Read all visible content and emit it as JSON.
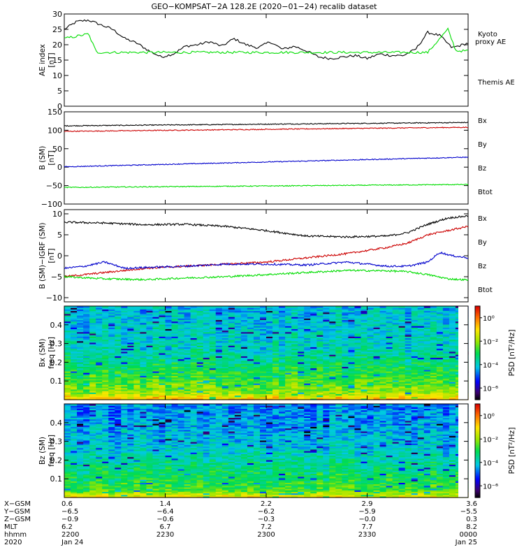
{
  "title": "GEO−KOMPSAT−2A 128.2E (2020−01−24) recalib dataset",
  "colors": {
    "black": "#000000",
    "red": "#cc0000",
    "green": "#00dd00",
    "blue": "#0000cc"
  },
  "chart_data": [
    {
      "type": "line",
      "panel": "ae",
      "ylabel": "AE index",
      "yunit": "[nT]",
      "ylim": [
        0,
        30
      ],
      "yticks": [
        0,
        5,
        10,
        15,
        20,
        25,
        30
      ],
      "legend": [
        {
          "text": "Kyoto",
          "color": "green"
        },
        {
          "text": "proxy AE",
          "color": "green"
        },
        {
          "text": "Themis AE",
          "color": "black"
        }
      ],
      "series": [
        {
          "name": "Themis AE",
          "color": "black",
          "x": [
            0,
            0.03,
            0.06,
            0.09,
            0.12,
            0.15,
            0.18,
            0.21,
            0.24,
            0.27,
            0.3,
            0.33,
            0.36,
            0.39,
            0.42,
            0.45,
            0.48,
            0.51,
            0.54,
            0.57,
            0.6,
            0.63,
            0.66,
            0.69,
            0.72,
            0.75,
            0.78,
            0.81,
            0.84,
            0.87,
            0.9,
            0.93,
            0.96,
            1.0
          ],
          "y": [
            25,
            27.5,
            28,
            26.5,
            25,
            22,
            20.5,
            18,
            16,
            17,
            19.5,
            20,
            21,
            19.5,
            22,
            20,
            19,
            21,
            18.5,
            19.5,
            18,
            16,
            15.5,
            16,
            16.5,
            15.5,
            17,
            16.5,
            16.5,
            18.5,
            24,
            23,
            19,
            20.5
          ]
        },
        {
          "name": "Kyoto proxy AE",
          "color": "green",
          "x": [
            0,
            0.04,
            0.06,
            0.08,
            0.5,
            0.9,
            0.95,
            0.97,
            1.0
          ],
          "y": [
            22,
            23,
            23.5,
            17.5,
            17.5,
            17.5,
            25,
            18,
            18
          ]
        }
      ]
    },
    {
      "type": "line",
      "panel": "b",
      "ylabel": "B (SM)",
      "yunit": "[nT]",
      "ylim": [
        -100,
        150
      ],
      "yticks": [
        -100,
        -50,
        0,
        50,
        100,
        150
      ],
      "legend": [
        {
          "text": "Bx",
          "color": "blue"
        },
        {
          "text": "By",
          "color": "green"
        },
        {
          "text": "Bz",
          "color": "red"
        },
        {
          "text": "Btot",
          "color": "black"
        }
      ],
      "series": [
        {
          "name": "Btot",
          "color": "black",
          "x": [
            0,
            1
          ],
          "y": [
            112,
            121
          ]
        },
        {
          "name": "Bz",
          "color": "red",
          "x": [
            0,
            1
          ],
          "y": [
            97,
            108
          ]
        },
        {
          "name": "Bx",
          "color": "blue",
          "x": [
            0,
            1
          ],
          "y": [
            1,
            27
          ]
        },
        {
          "name": "By",
          "color": "green",
          "x": [
            0,
            1
          ],
          "y": [
            -55,
            -47
          ]
        }
      ]
    },
    {
      "type": "line",
      "panel": "db",
      "ylabel": "B (SM)−IGRF (SM)",
      "yunit": "[nT]",
      "ylim": [
        -11,
        11
      ],
      "yticks": [
        -10,
        -5,
        0,
        5,
        10
      ],
      "legend": [
        {
          "text": "Bx",
          "color": "blue"
        },
        {
          "text": "By",
          "color": "green"
        },
        {
          "text": "Bz",
          "color": "red"
        },
        {
          "text": "Btot",
          "color": "black"
        }
      ],
      "series": [
        {
          "name": "Btot",
          "color": "black",
          "x": [
            0,
            0.1,
            0.2,
            0.3,
            0.4,
            0.5,
            0.6,
            0.7,
            0.8,
            0.85,
            0.9,
            0.95,
            1.0
          ],
          "y": [
            8,
            7.8,
            7.4,
            7.5,
            7,
            6,
            4.7,
            4.5,
            4.7,
            5.5,
            7.5,
            9,
            9.5
          ]
        },
        {
          "name": "Bz",
          "color": "red",
          "x": [
            0,
            0.1,
            0.2,
            0.3,
            0.4,
            0.5,
            0.6,
            0.7,
            0.8,
            0.85,
            0.9,
            0.95,
            1.0
          ],
          "y": [
            -5,
            -4,
            -3,
            -2.5,
            -2,
            -1.5,
            -0.5,
            0.5,
            2,
            3,
            5,
            6,
            7
          ]
        },
        {
          "name": "Bx",
          "color": "blue",
          "x": [
            0,
            0.05,
            0.1,
            0.15,
            0.2,
            0.3,
            0.4,
            0.5,
            0.6,
            0.7,
            0.8,
            0.85,
            0.9,
            0.93,
            0.96,
            1.0
          ],
          "y": [
            -3,
            -2.5,
            -1.5,
            -3,
            -2.8,
            -2.5,
            -2,
            -2,
            -2.2,
            -1.5,
            -2.5,
            -2.5,
            -1.5,
            0.8,
            0,
            -0.5
          ]
        },
        {
          "name": "By",
          "color": "green",
          "x": [
            0,
            0.1,
            0.2,
            0.3,
            0.4,
            0.5,
            0.6,
            0.7,
            0.8,
            0.85,
            0.9,
            0.95,
            1.0
          ],
          "y": [
            -5,
            -5.5,
            -5.7,
            -5.3,
            -5,
            -4.5,
            -4,
            -3.5,
            -3.6,
            -3.8,
            -4.5,
            -5.5,
            -5.8
          ]
        }
      ]
    },
    {
      "type": "heatmap",
      "panel": "bx_spec",
      "ylabel": "Bx (SM)",
      "yunit": "freq [Hz]",
      "ylim": [
        0,
        0.5
      ],
      "yticks": [
        0.1,
        0.2,
        0.3,
        0.4
      ],
      "colorbar": {
        "label": "PSD [nT²/Hz]",
        "ticks": [
          "10⁰",
          "10⁻²",
          "10⁻⁴",
          "10⁻⁶"
        ],
        "range_log10": [
          -7,
          1
        ]
      },
      "z_profile_log10": [
        [
          0,
          -0.5
        ],
        [
          0.04,
          -2.0
        ],
        [
          0.13,
          -2.8
        ],
        [
          0.18,
          -3.2
        ],
        [
          0.27,
          -3.8
        ],
        [
          0.5,
          -4.2
        ]
      ]
    },
    {
      "type": "heatmap",
      "panel": "bz_spec",
      "ylabel": "Bz (SM)",
      "yunit": "freq [Hz]",
      "ylim": [
        0,
        0.5
      ],
      "yticks": [
        0.1,
        0.2,
        0.3,
        0.4
      ],
      "colorbar": {
        "label": "PSD [nT²/Hz]",
        "ticks": [
          "10⁰",
          "10⁻²",
          "10⁻⁴",
          "10⁻⁶"
        ],
        "range_log10": [
          -7,
          1
        ]
      },
      "z_profile_log10": [
        [
          0,
          -1.0
        ],
        [
          0.04,
          -2.6
        ],
        [
          0.16,
          -3.4
        ],
        [
          0.3,
          -4.2
        ],
        [
          0.5,
          -4.6
        ]
      ]
    }
  ],
  "xaxis": {
    "row_labels": [
      "X−GSM",
      "Y−GSM",
      "Z−GSM",
      "MLT",
      "hhmm",
      "2020"
    ],
    "ticks": [
      {
        "x": 0.0,
        "vals": [
          "0.6",
          "−6.5",
          "−0.9",
          "6.2",
          "2200",
          "Jan 24"
        ]
      },
      {
        "x": 0.25,
        "vals": [
          "1.4",
          "−6.4",
          "−0.6",
          "6.7",
          "2230",
          ""
        ]
      },
      {
        "x": 0.5,
        "vals": [
          "2.2",
          "−6.2",
          "−0.3",
          "7.2",
          "2300",
          ""
        ]
      },
      {
        "x": 0.75,
        "vals": [
          "2.9",
          "−5.9",
          "−0.0",
          "7.7",
          "2330",
          ""
        ]
      },
      {
        "x": 1.0,
        "vals": [
          "3.6",
          "−5.5",
          "0.3",
          "8.2",
          "0000",
          "Jan 25"
        ]
      }
    ]
  }
}
